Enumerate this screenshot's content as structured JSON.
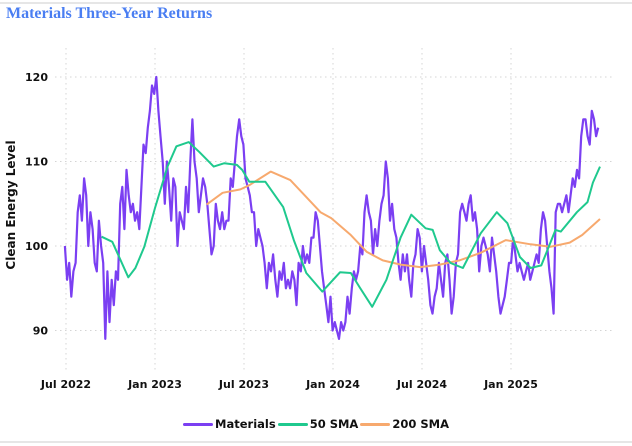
{
  "chart_data": {
    "type": "line",
    "title": "Materials Three-Year Returns",
    "xlabel": "",
    "ylabel": "Clean Energy Level",
    "x_unit": "decimal year",
    "xlim": [
      2022.42,
      2025.56
    ],
    "ylim": [
      87,
      123
    ],
    "grid": true,
    "legend_position": "bottom-center",
    "x_ticks": [
      {
        "value": 2022.5,
        "label": "Jul 2022"
      },
      {
        "value": 2023.0,
        "label": "Jan 2023"
      },
      {
        "value": 2023.5,
        "label": "Jul 2023"
      },
      {
        "value": 2024.0,
        "label": "Jan 2024"
      },
      {
        "value": 2024.5,
        "label": "Jul 2024"
      },
      {
        "value": 2025.0,
        "label": "Jan 2025"
      }
    ],
    "y_ticks": [
      {
        "value": 90,
        "label": "90"
      },
      {
        "value": 100,
        "label": "100"
      },
      {
        "value": 110,
        "label": "110"
      },
      {
        "value": 120,
        "label": "120"
      }
    ],
    "series": [
      {
        "name": "Materials",
        "color": "#7b3ff2",
        "x_start": 2022.494,
        "x_end": 2025.49,
        "values": [
          100,
          96,
          98,
          94,
          97,
          98,
          104,
          106,
          103,
          108,
          106,
          100,
          104,
          102,
          98,
          97,
          103,
          100,
          98,
          89,
          97,
          91,
          96,
          93,
          97,
          96,
          105,
          107,
          102,
          109,
          106,
          104,
          105,
          103,
          104,
          102,
          107,
          112,
          111,
          114,
          116,
          119,
          118,
          120,
          116,
          113,
          110,
          105,
          110,
          107,
          103,
          108,
          107,
          100,
          104,
          103,
          102,
          107,
          104,
          110,
          115,
          110,
          108,
          104,
          106,
          108,
          107,
          105,
          102,
          99,
          100,
          105,
          103,
          102,
          104,
          102,
          103,
          103,
          108,
          107,
          110,
          113,
          115,
          113,
          112,
          108,
          107,
          106,
          104,
          104,
          100,
          102,
          101,
          100,
          98,
          95,
          98,
          97,
          99,
          96,
          94,
          97,
          96,
          98,
          95,
          96,
          95,
          97,
          96,
          93,
          98,
          97,
          100,
          98,
          99,
          98,
          101,
          101,
          104,
          103,
          100,
          97,
          95,
          93,
          91,
          94,
          90,
          91,
          90,
          89,
          91,
          90,
          91,
          94,
          92,
          95,
          97,
          96,
          97,
          100,
          99,
          104,
          106,
          104,
          103,
          99,
          102,
          100,
          103,
          105,
          106,
          110,
          108,
          103,
          105,
          102,
          101,
          98,
          96,
          99,
          97,
          99,
          96,
          94,
          98,
          99,
          102,
          101,
          97,
          100,
          98,
          96,
          93,
          92,
          94,
          95,
          98,
          96,
          94,
          98,
          99,
          96,
          92,
          94,
          98,
          99,
          104,
          105,
          104,
          103,
          105,
          106,
          103,
          104,
          102,
          97,
          100,
          101,
          100,
          99,
          97,
          101,
          99,
          97,
          94,
          92,
          93,
          94,
          96,
          98,
          98,
          101,
          99,
          97,
          98,
          97,
          96,
          97,
          98,
          96,
          97,
          98,
          99,
          98,
          102,
          104,
          103,
          100,
          97,
          95,
          92,
          104,
          105,
          105,
          104,
          105,
          106,
          104,
          106,
          108,
          107,
          109,
          108,
          113,
          115,
          115,
          113,
          112,
          116,
          115,
          113,
          114
        ]
      },
      {
        "name": "50 SMA",
        "color": "#1fc98e",
        "points": [
          [
            2022.7,
            101.1
          ],
          [
            2022.76,
            100.5
          ],
          [
            2022.85,
            96.3
          ],
          [
            2022.89,
            97.4
          ],
          [
            2022.94,
            99.9
          ],
          [
            2023.0,
            104.5
          ],
          [
            2023.07,
            109.4
          ],
          [
            2023.12,
            111.8
          ],
          [
            2023.19,
            112.3
          ],
          [
            2023.25,
            111.1
          ],
          [
            2023.33,
            109.4
          ],
          [
            2023.39,
            109.8
          ],
          [
            2023.46,
            109.6
          ],
          [
            2023.49,
            109.0
          ],
          [
            2023.53,
            107.6
          ],
          [
            2023.62,
            107.6
          ],
          [
            2023.72,
            104.6
          ],
          [
            2023.78,
            100.7
          ],
          [
            2023.85,
            96.8
          ],
          [
            2023.94,
            94.6
          ],
          [
            2024.04,
            96.9
          ],
          [
            2024.1,
            96.8
          ],
          [
            2024.15,
            95.1
          ],
          [
            2024.22,
            92.8
          ],
          [
            2024.3,
            96.0
          ],
          [
            2024.38,
            101.0
          ],
          [
            2024.44,
            103.7
          ],
          [
            2024.52,
            102.1
          ],
          [
            2024.56,
            101.9
          ],
          [
            2024.6,
            99.5
          ],
          [
            2024.66,
            98.0
          ],
          [
            2024.73,
            97.4
          ],
          [
            2024.83,
            101.5
          ],
          [
            2024.92,
            104.0
          ],
          [
            2024.98,
            102.7
          ],
          [
            2025.05,
            98.7
          ],
          [
            2025.11,
            97.4
          ],
          [
            2025.17,
            97.7
          ],
          [
            2025.25,
            101.9
          ],
          [
            2025.28,
            101.7
          ],
          [
            2025.37,
            104.0
          ],
          [
            2025.43,
            105.2
          ],
          [
            2025.46,
            107.5
          ],
          [
            2025.5,
            109.4
          ]
        ]
      },
      {
        "name": "200 SMA",
        "color": "#f7a96e",
        "points": [
          [
            2023.29,
            104.9
          ],
          [
            2023.38,
            106.3
          ],
          [
            2023.48,
            106.7
          ],
          [
            2023.53,
            107.2
          ],
          [
            2023.65,
            108.8
          ],
          [
            2023.76,
            107.8
          ],
          [
            2023.85,
            105.8
          ],
          [
            2023.93,
            104.0
          ],
          [
            2023.99,
            103.3
          ],
          [
            2024.1,
            101.3
          ],
          [
            2024.19,
            99.3
          ],
          [
            2024.28,
            98.3
          ],
          [
            2024.38,
            97.8
          ],
          [
            2024.49,
            97.5
          ],
          [
            2024.6,
            97.8
          ],
          [
            2024.71,
            98.3
          ],
          [
            2024.83,
            99.2
          ],
          [
            2024.97,
            100.7
          ],
          [
            2025.11,
            100.2
          ],
          [
            2025.22,
            99.9
          ],
          [
            2025.33,
            100.4
          ],
          [
            2025.4,
            101.3
          ],
          [
            2025.5,
            103.2
          ]
        ]
      }
    ]
  }
}
